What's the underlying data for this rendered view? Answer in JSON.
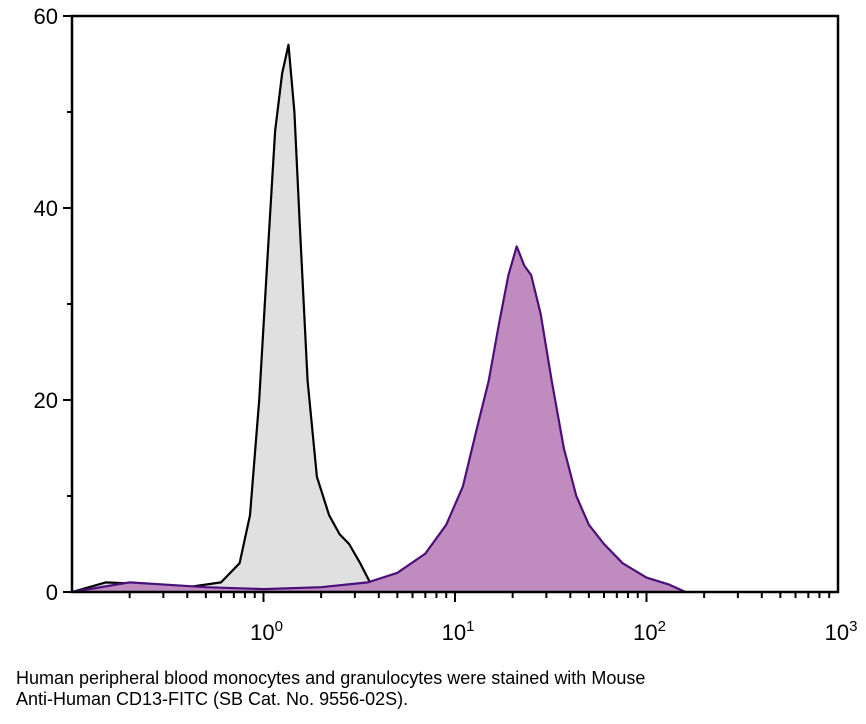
{
  "caption": {
    "line1": "Human peripheral blood monocytes and granulocytes were stained with Mouse",
    "line2": "Anti-Human CD13-FITC (SB Cat. No. 9556-02S)."
  },
  "colors": {
    "control_fill": "#e0e0e0",
    "control_line": "#000000",
    "stained_fill": "#c08cc0",
    "stained_line": "#4b0f7a"
  },
  "chart_data": {
    "type": "area",
    "title": "",
    "xlabel": "",
    "ylabel": "",
    "x_scale": "log",
    "xlim": [
      0.1,
      1000
    ],
    "ylim": [
      0,
      60
    ],
    "x_ticks": [
      {
        "value": 1,
        "base": "10",
        "exp": "0"
      },
      {
        "value": 10,
        "base": "10",
        "exp": "1"
      },
      {
        "value": 100,
        "base": "10",
        "exp": "2"
      },
      {
        "value": 1000,
        "base": "10",
        "exp": "3"
      }
    ],
    "y_ticks": [
      0,
      20,
      40,
      60
    ],
    "grid": false,
    "legend": "none",
    "series": [
      {
        "role": "isotype-control",
        "x": [
          0.1,
          0.15,
          0.25,
          0.4,
          0.6,
          0.75,
          0.85,
          0.95,
          1.05,
          1.15,
          1.25,
          1.35,
          1.45,
          1.55,
          1.7,
          1.9,
          2.2,
          2.5,
          2.8,
          3.2,
          3.6,
          4.0
        ],
        "y": [
          0,
          1,
          0.8,
          0.5,
          1,
          3,
          8,
          20,
          35,
          48,
          54,
          57,
          50,
          38,
          22,
          12,
          8,
          6,
          5,
          3,
          1,
          0
        ]
      },
      {
        "role": "CD13-FITC",
        "x": [
          0.1,
          0.2,
          0.5,
          1.0,
          2.0,
          3.5,
          5,
          7,
          9,
          11,
          13,
          15,
          17,
          19,
          21,
          23,
          25,
          28,
          32,
          37,
          43,
          50,
          60,
          75,
          100,
          130,
          160
        ],
        "y": [
          0,
          1,
          0.5,
          0.3,
          0.5,
          1,
          2,
          4,
          7,
          11,
          17,
          22,
          28,
          33,
          36,
          34,
          33,
          29,
          22,
          15,
          10,
          7,
          5,
          3,
          1.5,
          0.8,
          0
        ]
      }
    ]
  }
}
